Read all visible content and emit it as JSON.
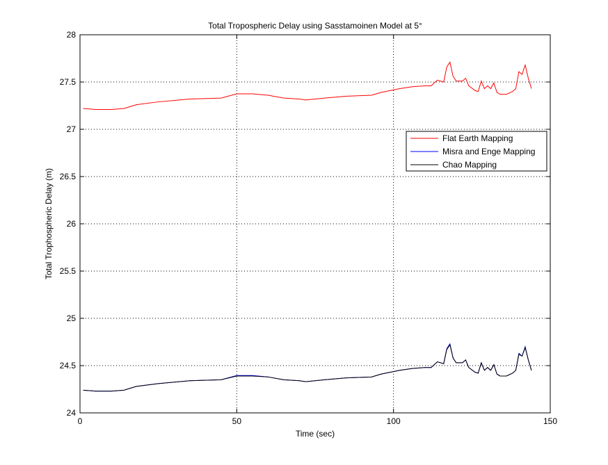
{
  "chart_data": {
    "type": "line",
    "title": "Total Tropospheric Delay using Sasstamoinen Model at 5°",
    "x_label": "Time (sec)",
    "y_label": "Total Trophospheric Delay (m)",
    "x": [
      1,
      5,
      10,
      14,
      18,
      25,
      35,
      45,
      50,
      55,
      60,
      65,
      70,
      72,
      78,
      85,
      93,
      96,
      102,
      106,
      110,
      112,
      114,
      116,
      117,
      118,
      119,
      120,
      122,
      123,
      124,
      126,
      127,
      128,
      129,
      130,
      131,
      132,
      133,
      134,
      136,
      138,
      139,
      140,
      141,
      142,
      143,
      144
    ],
    "series": [
      {
        "name": "Flat Earth Mapping",
        "color": "#ff0000",
        "values": [
          27.22,
          27.21,
          27.21,
          27.22,
          27.26,
          27.29,
          27.32,
          27.33,
          27.375,
          27.375,
          27.36,
          27.33,
          27.32,
          27.31,
          27.33,
          27.35,
          27.36,
          27.39,
          27.43,
          27.45,
          27.46,
          27.46,
          27.52,
          27.5,
          27.66,
          27.71,
          27.56,
          27.51,
          27.51,
          27.54,
          27.46,
          27.41,
          27.4,
          27.51,
          27.43,
          27.46,
          27.43,
          27.49,
          27.39,
          27.37,
          27.37,
          27.4,
          27.43,
          27.61,
          27.58,
          27.68,
          27.54,
          27.43
        ]
      },
      {
        "name": "Misra and Enge Mapping",
        "color": "#0000ff",
        "values": [
          24.24,
          24.23,
          24.23,
          24.24,
          24.28,
          24.31,
          24.34,
          24.35,
          24.395,
          24.395,
          24.38,
          24.35,
          24.34,
          24.33,
          24.35,
          24.37,
          24.38,
          24.41,
          24.45,
          24.47,
          24.48,
          24.48,
          24.54,
          24.52,
          24.68,
          24.73,
          24.58,
          24.53,
          24.53,
          24.56,
          24.48,
          24.43,
          24.42,
          24.53,
          24.45,
          24.48,
          24.45,
          24.51,
          24.41,
          24.39,
          24.39,
          24.42,
          24.45,
          24.63,
          24.6,
          24.7,
          24.56,
          24.45
        ]
      },
      {
        "name": "Chao Mapping",
        "color": "#000000",
        "values": [
          24.24,
          24.23,
          24.23,
          24.24,
          24.28,
          24.31,
          24.34,
          24.35,
          24.39,
          24.39,
          24.38,
          24.35,
          24.34,
          24.33,
          24.35,
          24.37,
          24.38,
          24.41,
          24.45,
          24.47,
          24.48,
          24.48,
          24.54,
          24.52,
          24.67,
          24.72,
          24.58,
          24.53,
          24.53,
          24.56,
          24.48,
          24.43,
          24.42,
          24.53,
          24.45,
          24.48,
          24.45,
          24.51,
          24.41,
          24.39,
          24.39,
          24.42,
          24.45,
          24.62,
          24.6,
          24.69,
          24.56,
          24.45
        ]
      }
    ],
    "xlim": [
      0,
      150
    ],
    "xticks": [
      0,
      50,
      100,
      150
    ],
    "ylim": [
      24,
      28
    ],
    "yticks": [
      24,
      24.5,
      25,
      25.5,
      26,
      26.5,
      27,
      27.5,
      28
    ],
    "grid": true
  }
}
